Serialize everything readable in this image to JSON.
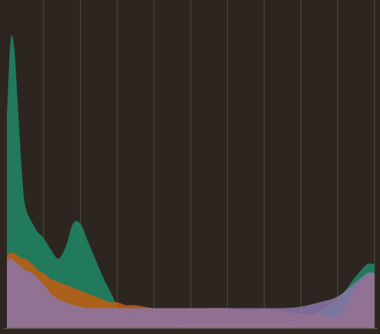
{
  "chart_data": {
    "type": "area",
    "title": "",
    "xlabel": "",
    "ylabel": "",
    "xlim": [
      0,
      10
    ],
    "ylim": [
      0,
      1
    ],
    "grid": true,
    "legend": "none",
    "x": [
      0,
      0.1,
      0.2,
      0.3,
      0.4,
      0.5,
      0.7,
      0.85,
      1.0,
      1.2,
      1.4,
      1.6,
      1.8,
      2.0,
      2.2,
      2.4,
      2.6,
      2.8,
      3.0,
      3.25,
      3.5,
      4.0,
      4.5,
      5.0,
      5.5,
      6.0,
      6.5,
      7.0,
      7.5,
      8.0,
      8.5,
      9.0,
      9.5,
      9.8,
      10.0
    ],
    "series": [
      {
        "color": "#1f8a66",
        "values": [
          0.73,
          0.99,
          0.96,
          0.76,
          0.55,
          0.42,
          0.36,
          0.33,
          0.31,
          0.27,
          0.24,
          0.28,
          0.36,
          0.36,
          0.3,
          0.24,
          0.18,
          0.13,
          0.08,
          0.05,
          0.05,
          0.05,
          0.03,
          0.02,
          0.02,
          0.02,
          0.02,
          0.02,
          0.02,
          0.03,
          0.06,
          0.1,
          0.18,
          0.22,
          0.22
        ]
      },
      {
        "color": "#c45c12",
        "values": [
          0.25,
          0.26,
          0.26,
          0.25,
          0.24,
          0.24,
          0.22,
          0.2,
          0.19,
          0.17,
          0.16,
          0.15,
          0.14,
          0.13,
          0.12,
          0.11,
          0.1,
          0.09,
          0.09,
          0.08,
          0.08,
          0.07,
          0.07,
          0.07,
          0.07,
          0.07,
          0.06,
          0.065,
          0.06,
          0.05,
          0.05,
          0.04,
          0.14,
          0.18,
          0.19
        ]
      },
      {
        "color": "#8c75aa",
        "values": [
          0.23,
          0.24,
          0.23,
          0.22,
          0.21,
          0.2,
          0.19,
          0.17,
          0.15,
          0.12,
          0.1,
          0.09,
          0.08,
          0.075,
          0.07,
          0.07,
          0.07,
          0.07,
          0.07,
          0.07,
          0.07,
          0.07,
          0.07,
          0.07,
          0.07,
          0.07,
          0.07,
          0.07,
          0.07,
          0.075,
          0.09,
          0.11,
          0.16,
          0.19,
          0.19
        ]
      }
    ],
    "colors": {
      "background": "#2d2620",
      "grid": "#4b4a3a",
      "axis": "#5a5448"
    }
  }
}
